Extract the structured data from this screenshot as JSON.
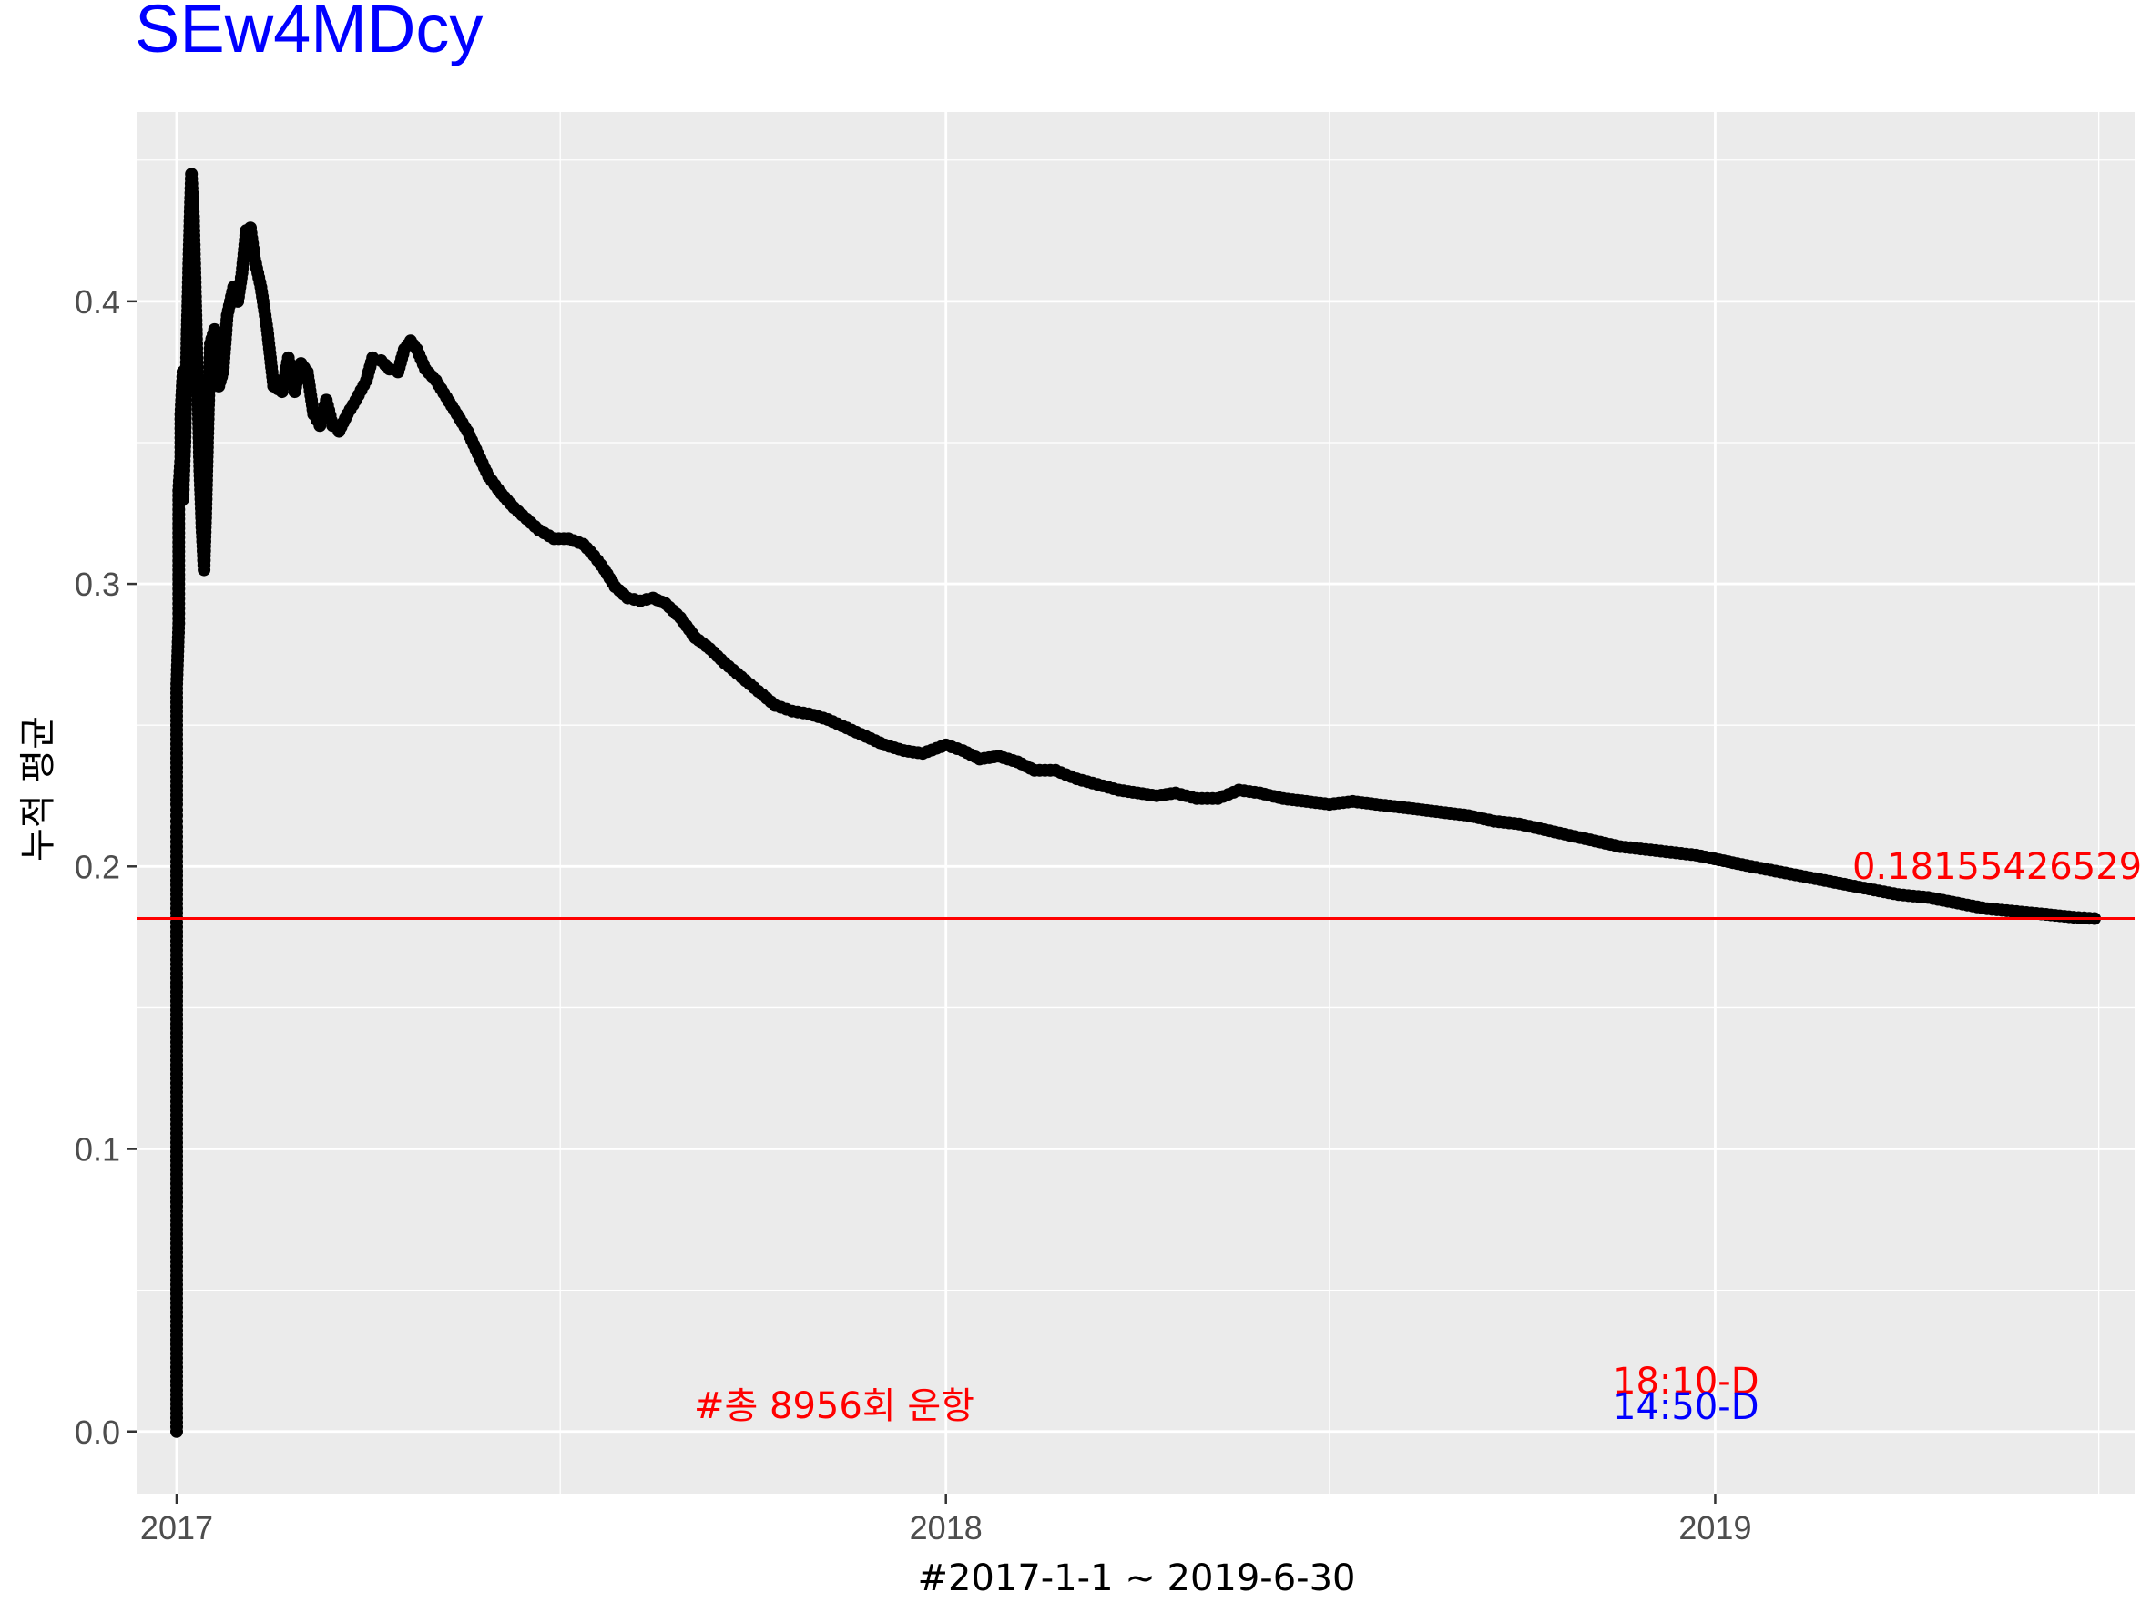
{
  "chart_data": {
    "type": "line",
    "title": "SEw4MDcy",
    "xlabel": "#2017-1-1 ~ 2019-6-30",
    "ylabel": "누적 평균",
    "x_range": [
      "2017-01-01",
      "2019-06-30"
    ],
    "xlim": [
      "2016-12-13",
      "2019-07-19"
    ],
    "ylim": [
      -0.022,
      0.467
    ],
    "x_ticks": [
      {
        "date": "2017-01-01",
        "label": "2017"
      },
      {
        "date": "2018-01-01",
        "label": "2018"
      },
      {
        "date": "2019-01-01",
        "label": "2019"
      }
    ],
    "x_minor_ticks": [
      "2017-07-02",
      "2018-07-02",
      "2019-07-02"
    ],
    "y_ticks": [
      0.0,
      0.1,
      0.2,
      0.3,
      0.4
    ],
    "y_tick_labels": [
      "0.0",
      "0.1",
      "0.2",
      "0.3",
      "0.4"
    ],
    "y_minor_ticks": [
      0.05,
      0.15,
      0.25,
      0.35,
      0.45
    ],
    "grid": true,
    "series": [
      {
        "color": "#000000",
        "points": [
          [
            "2017-01-01",
            0.0
          ],
          [
            "2017-01-01",
            0.091
          ],
          [
            "2017-01-01",
            0.154
          ],
          [
            "2017-01-01",
            0.167
          ],
          [
            "2017-01-01",
            0.2
          ],
          [
            "2017-01-01",
            0.214
          ],
          [
            "2017-01-01",
            0.222
          ],
          [
            "2017-01-01",
            0.235
          ],
          [
            "2017-01-01",
            0.25
          ],
          [
            "2017-01-01",
            0.263
          ],
          [
            "2017-01-02",
            0.286
          ],
          [
            "2017-01-02",
            0.3
          ],
          [
            "2017-01-02",
            0.318
          ],
          [
            "2017-01-02",
            0.333
          ],
          [
            "2017-01-03",
            0.345
          ],
          [
            "2017-01-03",
            0.36
          ],
          [
            "2017-01-04",
            0.375
          ],
          [
            "2017-01-04",
            0.33
          ],
          [
            "2017-01-05",
            0.352
          ],
          [
            "2017-01-06",
            0.39
          ],
          [
            "2017-01-07",
            0.42
          ],
          [
            "2017-01-08",
            0.445
          ],
          [
            "2017-01-09",
            0.43
          ],
          [
            "2017-01-10",
            0.4
          ],
          [
            "2017-01-11",
            0.37
          ],
          [
            "2017-01-12",
            0.34
          ],
          [
            "2017-01-13",
            0.32
          ],
          [
            "2017-01-14",
            0.305
          ],
          [
            "2017-01-15",
            0.33
          ],
          [
            "2017-01-16",
            0.36
          ],
          [
            "2017-01-17",
            0.385
          ],
          [
            "2017-01-19",
            0.39
          ],
          [
            "2017-01-21",
            0.37
          ],
          [
            "2017-01-23",
            0.375
          ],
          [
            "2017-01-25",
            0.395
          ],
          [
            "2017-01-28",
            0.405
          ],
          [
            "2017-01-30",
            0.4
          ],
          [
            "2017-02-01",
            0.41
          ],
          [
            "2017-02-03",
            0.425
          ],
          [
            "2017-02-05",
            0.426
          ],
          [
            "2017-02-07",
            0.415
          ],
          [
            "2017-02-10",
            0.405
          ],
          [
            "2017-02-13",
            0.39
          ],
          [
            "2017-02-16",
            0.37
          ],
          [
            "2017-02-20",
            0.368
          ],
          [
            "2017-02-23",
            0.38
          ],
          [
            "2017-02-26",
            0.368
          ],
          [
            "2017-03-01",
            0.378
          ],
          [
            "2017-03-04",
            0.375
          ],
          [
            "2017-03-07",
            0.36
          ],
          [
            "2017-03-10",
            0.356
          ],
          [
            "2017-03-13",
            0.365
          ],
          [
            "2017-03-16",
            0.356
          ],
          [
            "2017-03-19",
            0.354
          ],
          [
            "2017-03-23",
            0.36
          ],
          [
            "2017-03-27",
            0.365
          ],
          [
            "2017-04-01",
            0.372
          ],
          [
            "2017-04-04",
            0.38
          ],
          [
            "2017-04-08",
            0.379
          ],
          [
            "2017-04-12",
            0.376
          ],
          [
            "2017-04-16",
            0.375
          ],
          [
            "2017-04-19",
            0.383
          ],
          [
            "2017-04-22",
            0.386
          ],
          [
            "2017-04-25",
            0.383
          ],
          [
            "2017-04-29",
            0.376
          ],
          [
            "2017-05-04",
            0.372
          ],
          [
            "2017-05-09",
            0.366
          ],
          [
            "2017-05-14",
            0.36
          ],
          [
            "2017-05-19",
            0.354
          ],
          [
            "2017-05-24",
            0.346
          ],
          [
            "2017-05-29",
            0.338
          ],
          [
            "2017-06-04",
            0.332
          ],
          [
            "2017-06-10",
            0.327
          ],
          [
            "2017-06-16",
            0.323
          ],
          [
            "2017-06-22",
            0.319
          ],
          [
            "2017-06-29",
            0.316
          ],
          [
            "2017-07-06",
            0.316
          ],
          [
            "2017-07-13",
            0.314
          ],
          [
            "2017-07-18",
            0.31
          ],
          [
            "2017-07-23",
            0.305
          ],
          [
            "2017-07-28",
            0.299
          ],
          [
            "2017-08-03",
            0.295
          ],
          [
            "2017-08-09",
            0.294
          ],
          [
            "2017-08-15",
            0.295
          ],
          [
            "2017-08-21",
            0.293
          ],
          [
            "2017-08-28",
            0.288
          ],
          [
            "2017-09-04",
            0.281
          ],
          [
            "2017-09-11",
            0.277
          ],
          [
            "2017-09-18",
            0.272
          ],
          [
            "2017-09-26",
            0.267
          ],
          [
            "2017-10-04",
            0.262
          ],
          [
            "2017-10-12",
            0.257
          ],
          [
            "2017-10-20",
            0.255
          ],
          [
            "2017-10-28",
            0.254
          ],
          [
            "2017-11-06",
            0.252
          ],
          [
            "2017-11-15",
            0.249
          ],
          [
            "2017-11-24",
            0.246
          ],
          [
            "2017-12-03",
            0.243
          ],
          [
            "2017-12-12",
            0.241
          ],
          [
            "2017-12-21",
            0.24
          ],
          [
            "2018-01-01",
            0.243
          ],
          [
            "2018-01-09",
            0.241
          ],
          [
            "2018-01-17",
            0.238
          ],
          [
            "2018-01-26",
            0.239
          ],
          [
            "2018-02-04",
            0.237
          ],
          [
            "2018-02-12",
            0.234
          ],
          [
            "2018-02-22",
            0.234
          ],
          [
            "2018-03-04",
            0.231
          ],
          [
            "2018-03-14",
            0.229
          ],
          [
            "2018-03-24",
            0.227
          ],
          [
            "2018-04-02",
            0.226
          ],
          [
            "2018-04-11",
            0.225
          ],
          [
            "2018-04-20",
            0.226
          ],
          [
            "2018-04-30",
            0.224
          ],
          [
            "2018-05-10",
            0.224
          ],
          [
            "2018-05-20",
            0.227
          ],
          [
            "2018-05-30",
            0.226
          ],
          [
            "2018-06-10",
            0.224
          ],
          [
            "2018-06-21",
            0.223
          ],
          [
            "2018-07-02",
            0.222
          ],
          [
            "2018-07-13",
            0.223
          ],
          [
            "2018-07-24",
            0.222
          ],
          [
            "2018-08-04",
            0.221
          ],
          [
            "2018-08-15",
            0.22
          ],
          [
            "2018-08-26",
            0.219
          ],
          [
            "2018-09-06",
            0.218
          ],
          [
            "2018-09-18",
            0.216
          ],
          [
            "2018-09-30",
            0.215
          ],
          [
            "2018-10-12",
            0.213
          ],
          [
            "2018-10-24",
            0.211
          ],
          [
            "2018-11-05",
            0.209
          ],
          [
            "2018-11-17",
            0.207
          ],
          [
            "2018-11-29",
            0.206
          ],
          [
            "2018-12-11",
            0.205
          ],
          [
            "2018-12-23",
            0.204
          ],
          [
            "2019-01-05",
            0.202
          ],
          [
            "2019-01-18",
            0.2
          ],
          [
            "2019-02-01",
            0.198
          ],
          [
            "2019-02-15",
            0.196
          ],
          [
            "2019-03-01",
            0.194
          ],
          [
            "2019-03-15",
            0.192
          ],
          [
            "2019-03-29",
            0.19
          ],
          [
            "2019-04-12",
            0.189
          ],
          [
            "2019-04-26",
            0.187
          ],
          [
            "2019-05-10",
            0.185
          ],
          [
            "2019-05-24",
            0.184
          ],
          [
            "2019-06-07",
            0.183
          ],
          [
            "2019-06-20",
            0.182
          ],
          [
            "2019-06-30",
            0.18155426529
          ]
        ]
      }
    ],
    "hline": {
      "y": 0.18155426529,
      "color": "#ff0000"
    },
    "annotations": [
      {
        "text": "0.18155426529",
        "color": "#ff0000",
        "anchor": "end of line, right edge (clipped)"
      },
      {
        "text": "#총 8956회 운항",
        "color": "#ff0000",
        "anchor": "bottom-left"
      },
      {
        "text": "18:10-D",
        "color": "#ff0000",
        "anchor": "bottom-right"
      },
      {
        "text": "14:50-D",
        "color": "#0000ff",
        "anchor": "bottom-right"
      }
    ],
    "colors": {
      "title": "#0000ff",
      "panel": "#ebebeb",
      "grid": "#ffffff",
      "series": "#000000",
      "hline": "#ff0000",
      "annotation_red": "#ff0000",
      "annotation_blue": "#0000ff",
      "tick_text": "#4d4d4d",
      "axis_title": "#000000"
    }
  }
}
